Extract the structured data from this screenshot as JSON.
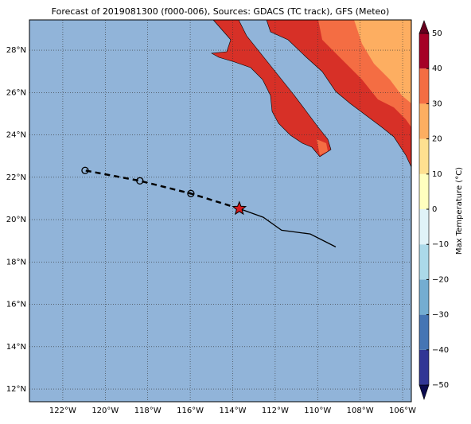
{
  "chart_data": {
    "type": "map",
    "title": "Forecast of 2019081300 (f000-006), Sources: GDACS (TC track), GFS (Meteo)",
    "xlim": [
      -123.57,
      -105.59
    ],
    "ylim": [
      11.4,
      29.43
    ],
    "xticks": [
      {
        "value": -122,
        "label": "122°W"
      },
      {
        "value": -120,
        "label": "120°W"
      },
      {
        "value": -118,
        "label": "118°W"
      },
      {
        "value": -116,
        "label": "116°W"
      },
      {
        "value": -114,
        "label": "114°W"
      },
      {
        "value": -112,
        "label": "112°W"
      },
      {
        "value": -110,
        "label": "110°W"
      },
      {
        "value": -108,
        "label": "108°W"
      },
      {
        "value": -106,
        "label": "106°W"
      }
    ],
    "yticks": [
      {
        "value": 12,
        "label": "12°N"
      },
      {
        "value": 14,
        "label": "14°N"
      },
      {
        "value": 16,
        "label": "16°N"
      },
      {
        "value": 18,
        "label": "18°N"
      },
      {
        "value": 20,
        "label": "20°N"
      },
      {
        "value": 22,
        "label": "22°N"
      },
      {
        "value": 24,
        "label": "24°N"
      },
      {
        "value": 26,
        "label": "26°N"
      },
      {
        "value": 28,
        "label": "28°N"
      }
    ],
    "grid": true,
    "ocean_color": "#91b4d9",
    "current": {
      "lon": -113.69,
      "lat": 20.52,
      "color": "#d7191c"
    },
    "observed": {
      "lon": [
        -112.56,
        -111.7,
        -110.35,
        -109.15
      ],
      "lat": [
        20.11,
        19.5,
        19.32,
        18.71
      ]
    },
    "forecast": {
      "lon": [
        -115.97,
        -118.37,
        -120.95
      ],
      "lat": [
        21.23,
        21.83,
        22.32
      ]
    },
    "colorbar": {
      "label": "Max Temperature (°C)",
      "ticks": [
        {
          "value": -50,
          "label": "−50"
        },
        {
          "value": -40,
          "label": "−40"
        },
        {
          "value": -30,
          "label": "−30"
        },
        {
          "value": -20,
          "label": "−20"
        },
        {
          "value": -10,
          "label": "−10"
        },
        0,
        10,
        20,
        30,
        40,
        50
      ],
      "colors": [
        "#313695",
        "#4575b4",
        "#74add1",
        "#abd9e9",
        "#e0f3f8",
        "#ffffbf",
        "#fee090",
        "#fdae61",
        "#f46d43",
        "#a50026"
      ]
    }
  }
}
